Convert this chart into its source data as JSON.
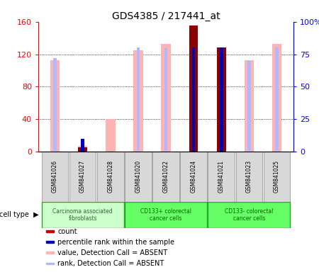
{
  "title": "GDS4385 / 217441_at",
  "samples": [
    "GSM841026",
    "GSM841027",
    "GSM841028",
    "GSM841020",
    "GSM841022",
    "GSM841024",
    "GSM841021",
    "GSM841023",
    "GSM841025"
  ],
  "cell_types": [
    {
      "label": "Carcinoma associated\nfibroblasts",
      "start": 0,
      "end": 2,
      "color": "#ccffcc"
    },
    {
      "label": "CD133+ colorectal\ncancer cells",
      "start": 3,
      "end": 5,
      "color": "#66ff66"
    },
    {
      "label": "CD133- colorectal\ncancer cells",
      "start": 6,
      "end": 8,
      "color": "#66ff66"
    }
  ],
  "value_absent": [
    113,
    7,
    40,
    125,
    133,
    0,
    0,
    113,
    133
  ],
  "rank_absent": [
    72,
    0,
    0,
    80,
    80,
    0,
    0,
    70,
    80
  ],
  "count_val": [
    0,
    5,
    0,
    0,
    0,
    155,
    128,
    0,
    0
  ],
  "percentile_val": [
    0,
    10,
    0,
    0,
    0,
    80,
    80,
    0,
    0
  ],
  "ylim_left": [
    0,
    160
  ],
  "ylim_right": [
    0,
    100
  ],
  "yticks_left": [
    0,
    40,
    80,
    120,
    160
  ],
  "yticks_right": [
    0,
    25,
    50,
    75,
    100
  ],
  "ytick_right_labels": [
    "0",
    "25",
    "50",
    "75",
    "100%"
  ],
  "absent_value_color": "#ffb3b3",
  "absent_rank_color": "#b0b8ff",
  "count_color": "#8b0000",
  "percentile_color": "#0000bb",
  "legend_items": [
    {
      "color": "#cc0000",
      "label": "count"
    },
    {
      "color": "#0000bb",
      "label": "percentile rank within the sample"
    },
    {
      "color": "#ffb3b3",
      "label": "value, Detection Call = ABSENT"
    },
    {
      "color": "#b0b8ff",
      "label": "rank, Detection Call = ABSENT"
    }
  ]
}
